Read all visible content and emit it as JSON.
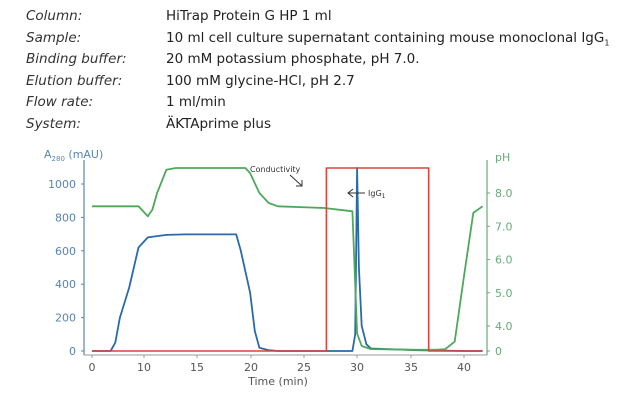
{
  "meta": [
    {
      "label": "Column:",
      "value": "HiTrap Protein G HP 1 ml"
    },
    {
      "label": "Sample:",
      "value": "10 ml cell culture supernatant containing mouse monoclonal IgG",
      "sub": "1"
    },
    {
      "label": "Binding buffer:",
      "value": "20 mM potassium phosphate, pH 7.0."
    },
    {
      "label": "Elution buffer:",
      "value": "100 mM glycine-HCl, pH 2.7"
    },
    {
      "label": "Flow rate:",
      "value": "1 ml/min"
    },
    {
      "label": "System:",
      "value": "ÄKTAprime plus"
    }
  ],
  "chart_data": {
    "type": "line",
    "title": "",
    "xlabel": "Time (min)",
    "ylabel": "A280 (mAU)",
    "ylabel_main": "A",
    "ylabel_sub": "280",
    "ylabel_unit": " (mAU)",
    "y2label": "pH",
    "x_ticks": [
      "0",
      "10",
      "15",
      "20",
      "25",
      "30",
      "35",
      "40"
    ],
    "y_ticks": [
      "0",
      "200",
      "400",
      "600",
      "800",
      "1000"
    ],
    "y2_ticks": [
      "0",
      "4.0",
      "5.0",
      "6.0",
      "7.0",
      "8.0"
    ],
    "ylim": [
      0,
      1100
    ],
    "y2lim": [
      0,
      8.5
    ],
    "grid": false,
    "annotations": [
      {
        "text": "Conductivity",
        "target": "red conductivity trace step at ~25 min"
      },
      {
        "text": "IgG",
        "sub": "1",
        "target": "elution peak at ~28.5 min"
      }
    ],
    "colors": {
      "a280": "#2a6aa8",
      "ph": "#4ea85a",
      "conductivity": "#d9453c",
      "left_axis": "#5a85b0",
      "right_axis": "#6aaa7a"
    },
    "series": [
      {
        "name": "A280 (mAU)",
        "axis": "left",
        "x": [
          0,
          2,
          2.5,
          3,
          4,
          5,
          6,
          8,
          10,
          12,
          14,
          15.5,
          16,
          17,
          17.5,
          18,
          19,
          20,
          25,
          28,
          28.3,
          28.5,
          28.7,
          29,
          29.5,
          30,
          35,
          40,
          42
        ],
        "values": [
          0,
          0,
          50,
          200,
          380,
          620,
          680,
          695,
          698,
          698,
          698,
          698,
          600,
          350,
          120,
          20,
          5,
          0,
          0,
          0,
          100,
          1100,
          500,
          150,
          40,
          15,
          5,
          0,
          0
        ]
      },
      {
        "name": "pH",
        "axis": "right",
        "x": [
          0,
          5,
          6,
          6.5,
          7,
          8,
          9,
          10,
          14,
          16.5,
          17,
          18,
          19,
          20,
          25,
          28,
          28.5,
          29,
          30,
          35,
          37,
          38,
          39,
          40,
          41,
          42
        ],
        "values": [
          7.6,
          7.6,
          7.3,
          7.5,
          8.0,
          8.7,
          8.8,
          8.8,
          8.8,
          8.8,
          8.6,
          8.0,
          7.7,
          7.6,
          7.55,
          7.45,
          2.8,
          0.8,
          0.3,
          0.2,
          0.2,
          0.3,
          1.5,
          5.5,
          7.4,
          7.6
        ]
      },
      {
        "name": "Conductivity",
        "axis": "left",
        "x": [
          0,
          25.2,
          25.2,
          36.2,
          36.2,
          42
        ],
        "values": [
          0,
          0,
          1100,
          1100,
          0,
          0
        ]
      }
    ]
  }
}
